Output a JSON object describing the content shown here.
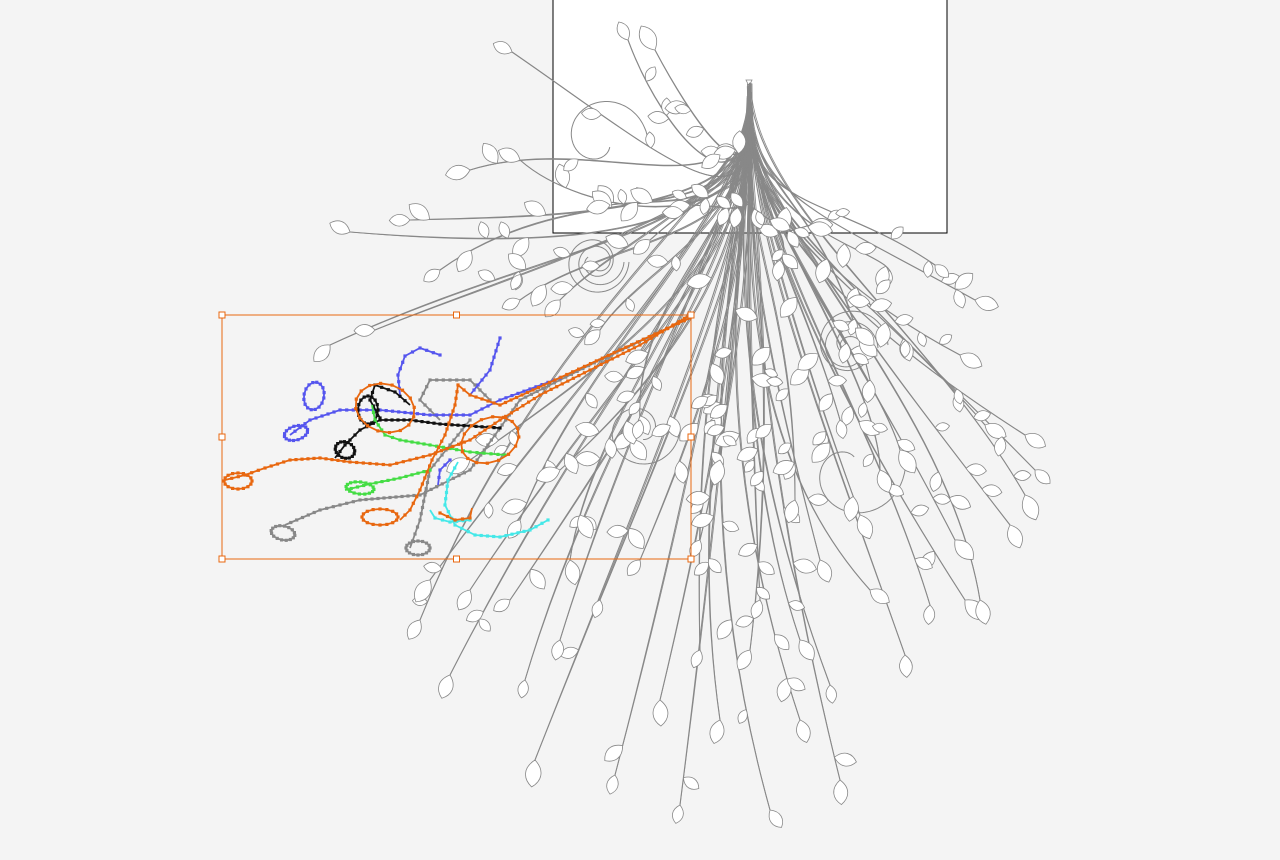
{
  "canvas": {
    "background": "#f4f4f4",
    "artboard_fill": "#ffffff",
    "artboard_stroke": "#000000",
    "artwork_stroke": "#888888",
    "leaf_fill": "#ffffff",
    "selection_color": "#e8670f"
  },
  "artwork": {
    "description_icon": "vine-tree-illustration",
    "selected_path_colors": [
      "#e8670f",
      "#5555ee",
      "#111111",
      "#44dd44",
      "#44e8e8",
      "#888888"
    ]
  }
}
